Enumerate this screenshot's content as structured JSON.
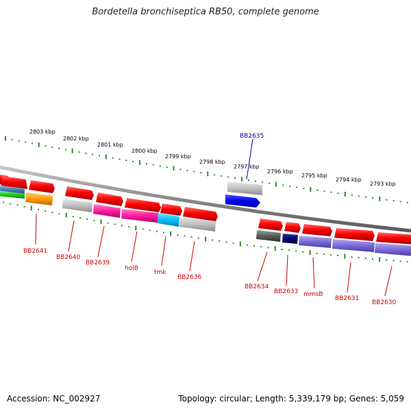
{
  "title": "Bordetella bronchiseptica RB50, complete genome",
  "footer": {
    "accession": "Accession: NC_002927",
    "summary": "Topology: circular; Length: 5,339,179 bp; Genes: 5,059"
  },
  "colors": {
    "scale_ticks": "#2e8b2e",
    "backbone": "#8a8a8a",
    "gene_label": "#cc0000",
    "highlight_label": "#0000aa"
  },
  "kbp_labels": [
    "2803 kbp",
    "2802 kbp",
    "2801 kbp",
    "2800 kbp",
    "2799 kbp",
    "2798 kbp",
    "2797 kbp",
    "2796 kbp",
    "2795 kbp",
    "2794 kbp",
    "2793 kbp"
  ],
  "highlight_gene": "BB2635",
  "gene_labels": [
    "BB2641",
    "BB2640",
    "BB2639",
    "holB",
    "tmk",
    "BB2636",
    "BB2634",
    "BB2633",
    "mmsB",
    "BB2631",
    "BB2630"
  ],
  "features": [
    {
      "track": "upper",
      "color": "red"
    },
    {
      "track": "upper",
      "color": "red"
    },
    {
      "track": "upper",
      "color": "red"
    },
    {
      "track": "upper",
      "color": "red"
    },
    {
      "track": "upper",
      "color": "red"
    },
    {
      "track": "upper",
      "color": "red"
    },
    {
      "track": "upper",
      "color": "red"
    },
    {
      "track": "upper",
      "color": "red"
    },
    {
      "track": "upper",
      "color": "red"
    },
    {
      "track": "upper",
      "color": "red"
    },
    {
      "track": "upper",
      "color": "red"
    },
    {
      "track": "upper",
      "color": "red"
    },
    {
      "track": "upper",
      "color": "silver"
    },
    {
      "track": "upper",
      "color": "blue"
    },
    {
      "track": "lower",
      "color": "steelblue"
    },
    {
      "track": "lower",
      "color": "green"
    },
    {
      "track": "lower",
      "color": "orange"
    },
    {
      "track": "lower",
      "color": "silver"
    },
    {
      "track": "lower",
      "color": "magenta"
    },
    {
      "track": "lower",
      "color": "magenta"
    },
    {
      "track": "lower",
      "color": "cyan"
    },
    {
      "track": "lower",
      "color": "silver"
    },
    {
      "track": "lower",
      "color": "darkgray"
    },
    {
      "track": "lower",
      "color": "navy"
    },
    {
      "track": "lower",
      "color": "slateblue"
    },
    {
      "track": "lower",
      "color": "slateblue"
    },
    {
      "track": "lower",
      "color": "slateblue"
    }
  ]
}
